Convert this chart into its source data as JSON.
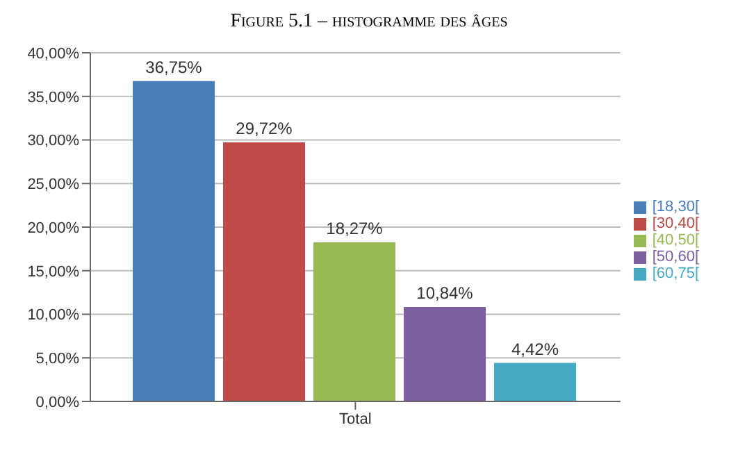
{
  "chart_data": {
    "type": "bar",
    "title": "Figure 5.1 – histogramme des âges",
    "categories": [
      "Total"
    ],
    "series": [
      {
        "name": "[18,30[",
        "color": "#4a7ebb",
        "values": [
          36.75
        ],
        "value_labels": [
          "36,75%"
        ]
      },
      {
        "name": "[30,40[",
        "color": "#be4b48",
        "values": [
          29.72
        ],
        "value_labels": [
          "29,72%"
        ]
      },
      {
        "name": "[40,50[",
        "color": "#98b954",
        "values": [
          18.27
        ],
        "value_labels": [
          "18,27%"
        ]
      },
      {
        "name": "[50,60[",
        "color": "#7d60a0",
        "values": [
          10.84
        ],
        "value_labels": [
          "10,84%"
        ]
      },
      {
        "name": "[60,75[",
        "color": "#46aac5",
        "values": [
          4.42
        ],
        "value_labels": [
          "4,42%"
        ]
      }
    ],
    "ylim": [
      0,
      40
    ],
    "yticks": [
      {
        "value": 0,
        "label": "0,00%"
      },
      {
        "value": 5,
        "label": "5,00%"
      },
      {
        "value": 10,
        "label": "10,00%"
      },
      {
        "value": 15,
        "label": "15,00%"
      },
      {
        "value": 20,
        "label": "20,00%"
      },
      {
        "value": 25,
        "label": "25,00%"
      },
      {
        "value": 30,
        "label": "30,00%"
      },
      {
        "value": 35,
        "label": "35,00%"
      },
      {
        "value": 40,
        "label": "40,00%"
      }
    ],
    "grid": "y",
    "legend": "right"
  }
}
